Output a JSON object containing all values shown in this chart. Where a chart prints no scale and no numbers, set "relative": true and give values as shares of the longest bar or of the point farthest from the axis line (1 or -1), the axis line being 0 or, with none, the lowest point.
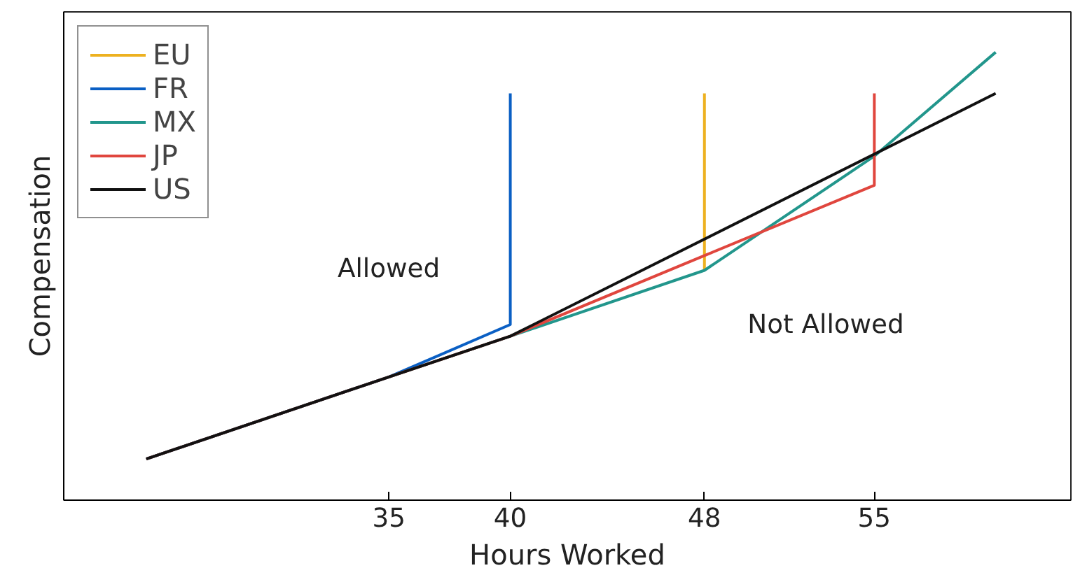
{
  "chart_data": {
    "type": "line",
    "xlabel": "Hours Worked",
    "ylabel": "Compensation",
    "relative": true,
    "xlim": [
      21.6,
      63.1
    ],
    "xticks": [
      35,
      40,
      48,
      55
    ],
    "series": [
      {
        "name": "EU",
        "color": "#edb120",
        "x": [
          48,
          48
        ],
        "values": [
          0.513,
          0.908
        ]
      },
      {
        "name": "FR",
        "color": "#0a5fc4",
        "x": [
          25,
          35,
          40,
          40
        ],
        "values": [
          0.092,
          0.275,
          0.392,
          0.908
        ]
      },
      {
        "name": "MX",
        "color": "#22968c",
        "x": [
          25,
          35,
          40,
          48,
          55,
          60
        ],
        "values": [
          0.092,
          0.275,
          0.366,
          0.513,
          0.768,
          1.0
        ]
      },
      {
        "name": "JP",
        "color": "#e0463e",
        "x": [
          25,
          35,
          40,
          48,
          55,
          55
        ],
        "values": [
          0.092,
          0.275,
          0.366,
          0.546,
          0.703,
          0.908
        ]
      },
      {
        "name": "US",
        "color": "#111111",
        "x": [
          25,
          35,
          40,
          60
        ],
        "values": [
          0.092,
          0.275,
          0.366,
          0.908
        ]
      }
    ],
    "annotations": [
      "Allowed",
      "Not Allowed"
    ],
    "legend": "top left",
    "grid": false,
    "marker": "none",
    "line_style": "solid"
  }
}
